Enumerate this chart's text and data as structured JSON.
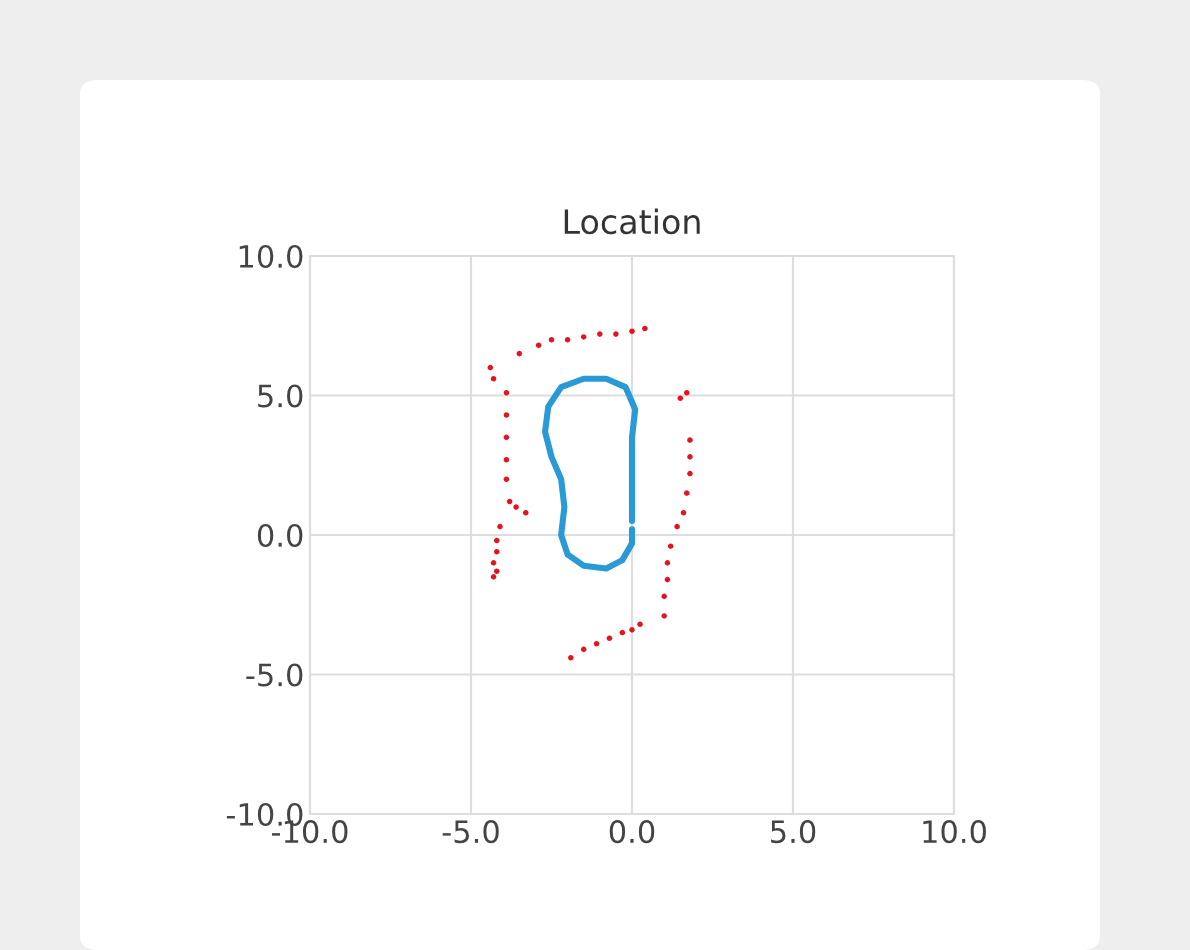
{
  "chart_data": {
    "type": "scatter",
    "title": "Location",
    "xlim": [
      -10,
      10
    ],
    "ylim": [
      -10,
      10
    ],
    "xticks": [
      {
        "value": -10,
        "label": "-10.0"
      },
      {
        "value": -5,
        "label": "-5.0"
      },
      {
        "value": 0,
        "label": "0.0"
      },
      {
        "value": 5,
        "label": "5.0"
      },
      {
        "value": 10,
        "label": "10.0"
      }
    ],
    "yticks": [
      {
        "value": -10,
        "label": "-10.0"
      },
      {
        "value": -5,
        "label": "-5.0"
      },
      {
        "value": 0,
        "label": "0.0"
      },
      {
        "value": 5,
        "label": "5.0"
      },
      {
        "value": 10,
        "label": "10.0"
      }
    ],
    "grid": true,
    "legend": false,
    "series": [
      {
        "color": "#e8121f",
        "marker": "circle",
        "x": [
          -2.9,
          -2.5,
          -2.0,
          -1.5,
          -1.0,
          -0.5,
          0.0,
          0.4,
          -3.5,
          -4.4,
          -4.3,
          -3.9,
          -3.9,
          -3.9,
          -3.9,
          -3.9,
          -3.8,
          -3.6,
          -3.3,
          -4.1,
          -4.2,
          -4.2,
          -4.3,
          -4.2,
          -4.3,
          1.5,
          1.7,
          1.8,
          1.8,
          1.8,
          1.7,
          1.6,
          1.4,
          1.2,
          1.1,
          1.1,
          1.0,
          1.0,
          -1.9,
          -1.5,
          -1.1,
          -0.7,
          -0.3,
          0.0,
          0.25
        ],
        "values": [
          6.8,
          7.0,
          7.0,
          7.1,
          7.2,
          7.2,
          7.3,
          7.4,
          6.5,
          6.0,
          5.6,
          5.1,
          4.3,
          3.5,
          2.7,
          2.0,
          1.2,
          1.0,
          0.8,
          0.3,
          -0.2,
          -0.6,
          -1.0,
          -1.3,
          -1.5,
          4.9,
          5.1,
          3.4,
          2.8,
          2.2,
          1.5,
          0.8,
          0.3,
          -0.4,
          -1.0,
          -1.6,
          -2.2,
          -2.9,
          -4.4,
          -4.1,
          -3.9,
          -3.7,
          -3.5,
          -3.4,
          -3.2
        ]
      },
      {
        "type": "line",
        "color": "#2a9ad6",
        "marker": "none",
        "line_style": "solid",
        "x": [
          0.0,
          0.0,
          0.0,
          0.1,
          -0.2,
          -0.8,
          -1.5,
          -2.2,
          -2.6,
          -2.7,
          -2.5,
          -2.2,
          -2.1,
          -2.2,
          -2.0,
          -1.5,
          -0.8,
          -0.3,
          0.0,
          0.0
        ],
        "values": [
          0.5,
          2.0,
          3.5,
          4.5,
          5.3,
          5.6,
          5.6,
          5.3,
          4.6,
          3.7,
          2.8,
          2.0,
          1.0,
          0.0,
          -0.7,
          -1.1,
          -1.2,
          -0.9,
          -0.3,
          0.2
        ]
      }
    ]
  }
}
